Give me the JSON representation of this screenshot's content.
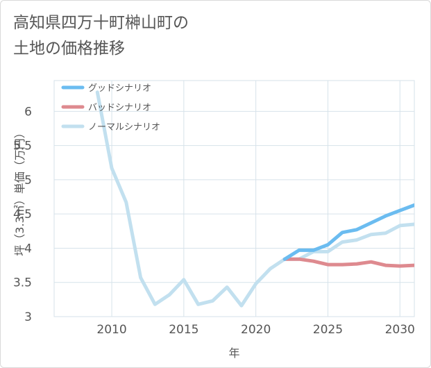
{
  "title": "高知県四万十町榊山町の\n土地の価格推移",
  "chart_data": {
    "type": "line",
    "xlabel": "年",
    "ylabel": "坪（3.3㎡）単価（万円）",
    "xlim": [
      2006,
      2031
    ],
    "ylim": [
      3,
      6.45
    ],
    "xticks": [
      2010,
      2015,
      2020,
      2025,
      2030
    ],
    "yticks": [
      3,
      3.5,
      4,
      4.5,
      5,
      5.5,
      6
    ],
    "ytick_labels": [
      "3",
      "3.5",
      "4",
      "4.5",
      "5",
      "5.5",
      "6"
    ],
    "grid": true,
    "legend_position": "top-left",
    "series": [
      {
        "name": "グッドシナリオ",
        "color": "#6bbcf0",
        "x": [
          2022,
          2023,
          2024,
          2025,
          2026,
          2027,
          2028,
          2029,
          2030,
          2031
        ],
        "values": [
          3.84,
          3.97,
          3.97,
          4.05,
          4.23,
          4.27,
          4.37,
          4.47,
          4.55,
          4.63
        ]
      },
      {
        "name": "バッドシナリオ",
        "color": "#de8a8f",
        "x": [
          2022,
          2023,
          2024,
          2025,
          2026,
          2027,
          2028,
          2029,
          2030,
          2031
        ],
        "values": [
          3.84,
          3.84,
          3.81,
          3.76,
          3.76,
          3.77,
          3.8,
          3.75,
          3.74,
          3.75
        ]
      },
      {
        "name": "ノーマルシナリオ",
        "color": "#c2e0ef",
        "x": [
          2009,
          2010,
          2011,
          2012,
          2013,
          2014,
          2015,
          2016,
          2017,
          2018,
          2019,
          2020,
          2021,
          2022,
          2023,
          2024,
          2025,
          2026,
          2027,
          2028,
          2029,
          2030,
          2031
        ],
        "values": [
          6.28,
          5.17,
          4.67,
          3.57,
          3.18,
          3.32,
          3.54,
          3.18,
          3.23,
          3.43,
          3.16,
          3.48,
          3.7,
          3.84,
          3.84,
          3.95,
          3.95,
          4.09,
          4.12,
          4.2,
          4.22,
          4.33,
          4.35
        ]
      }
    ]
  }
}
